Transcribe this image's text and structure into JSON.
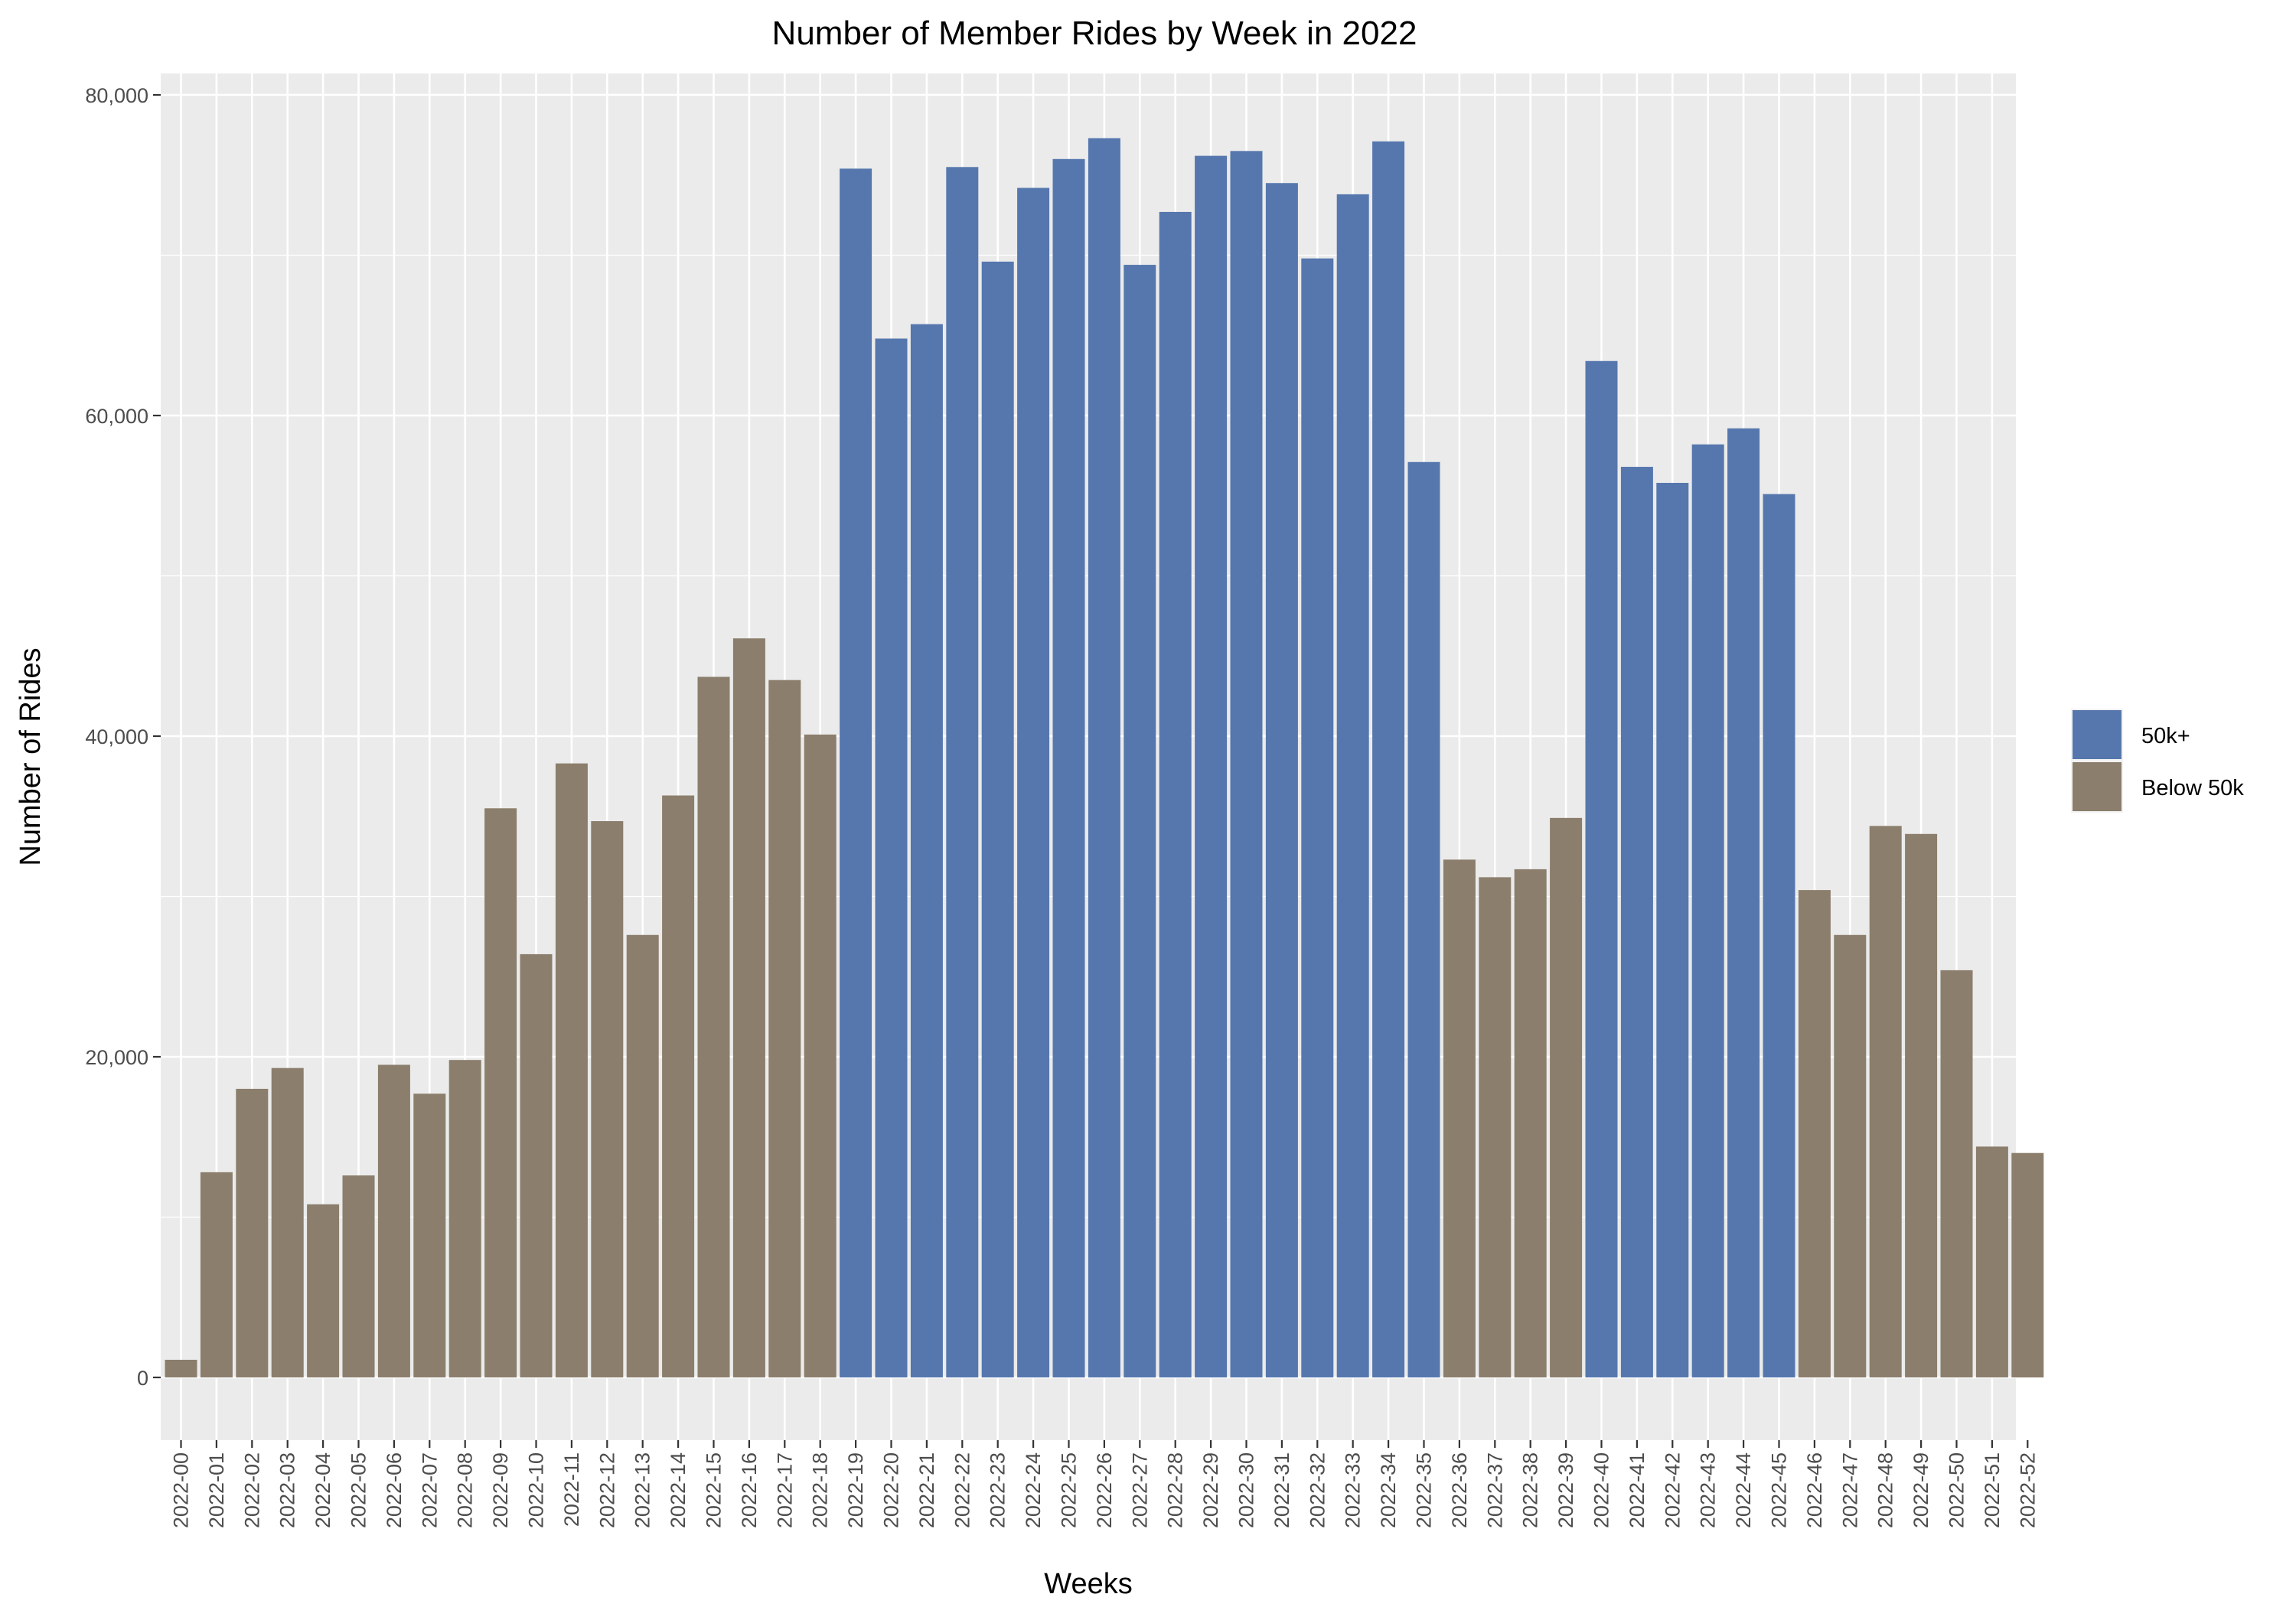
{
  "chart_data": {
    "type": "bar",
    "title": "Number of Member Rides by Week in 2022",
    "xlabel": "Weeks",
    "ylabel": "Number of Rides",
    "ylim": [
      0,
      80000
    ],
    "y_ticks": [
      0,
      20000,
      40000,
      60000,
      80000
    ],
    "y_tick_labels": [
      "0",
      "20,000",
      "40,000",
      "60,000",
      "80,000"
    ],
    "grid": true,
    "legend_position": "right",
    "legend": [
      {
        "label": "50k+",
        "color": "#5677ae"
      },
      {
        "label": "Below 50k",
        "color": "#8b7e6c"
      }
    ],
    "categories": [
      "2022-00",
      "2022-01",
      "2022-02",
      "2022-03",
      "2022-04",
      "2022-05",
      "2022-06",
      "2022-07",
      "2022-08",
      "2022-09",
      "2022-10",
      "2022-11",
      "2022-12",
      "2022-13",
      "2022-14",
      "2022-15",
      "2022-16",
      "2022-17",
      "2022-18",
      "2022-19",
      "2022-20",
      "2022-21",
      "2022-22",
      "2022-23",
      "2022-24",
      "2022-25",
      "2022-26",
      "2022-27",
      "2022-28",
      "2022-29",
      "2022-30",
      "2022-31",
      "2022-32",
      "2022-33",
      "2022-34",
      "2022-35",
      "2022-36",
      "2022-37",
      "2022-38",
      "2022-39",
      "2022-40",
      "2022-41",
      "2022-42",
      "2022-43",
      "2022-44",
      "2022-45",
      "2022-46",
      "2022-47",
      "2022-48",
      "2022-49",
      "2022-50",
      "2022-51",
      "2022-52"
    ],
    "values": [
      1100,
      12800,
      18000,
      19300,
      10800,
      12600,
      19500,
      17700,
      19800,
      35500,
      26400,
      38300,
      34700,
      27600,
      36300,
      43700,
      46100,
      43500,
      40100,
      75400,
      64800,
      65700,
      75500,
      69600,
      74200,
      76000,
      77300,
      69400,
      72700,
      76200,
      76500,
      74500,
      69800,
      73800,
      77100,
      57100,
      32300,
      31200,
      31700,
      34900,
      63400,
      56800,
      55800,
      58200,
      59200,
      55100,
      30400,
      27600,
      34400,
      33900,
      25400,
      14400,
      14000
    ],
    "groups": [
      "Below 50k",
      "Below 50k",
      "Below 50k",
      "Below 50k",
      "Below 50k",
      "Below 50k",
      "Below 50k",
      "Below 50k",
      "Below 50k",
      "Below 50k",
      "Below 50k",
      "Below 50k",
      "Below 50k",
      "Below 50k",
      "Below 50k",
      "Below 50k",
      "Below 50k",
      "Below 50k",
      "Below 50k",
      "50k+",
      "50k+",
      "50k+",
      "50k+",
      "50k+",
      "50k+",
      "50k+",
      "50k+",
      "50k+",
      "50k+",
      "50k+",
      "50k+",
      "50k+",
      "50k+",
      "50k+",
      "50k+",
      "50k+",
      "Below 50k",
      "Below 50k",
      "Below 50k",
      "Below 50k",
      "50k+",
      "50k+",
      "50k+",
      "50k+",
      "50k+",
      "50k+",
      "Below 50k",
      "Below 50k",
      "Below 50k",
      "Below 50k",
      "Below 50k",
      "Below 50k",
      "Below 50k"
    ]
  }
}
